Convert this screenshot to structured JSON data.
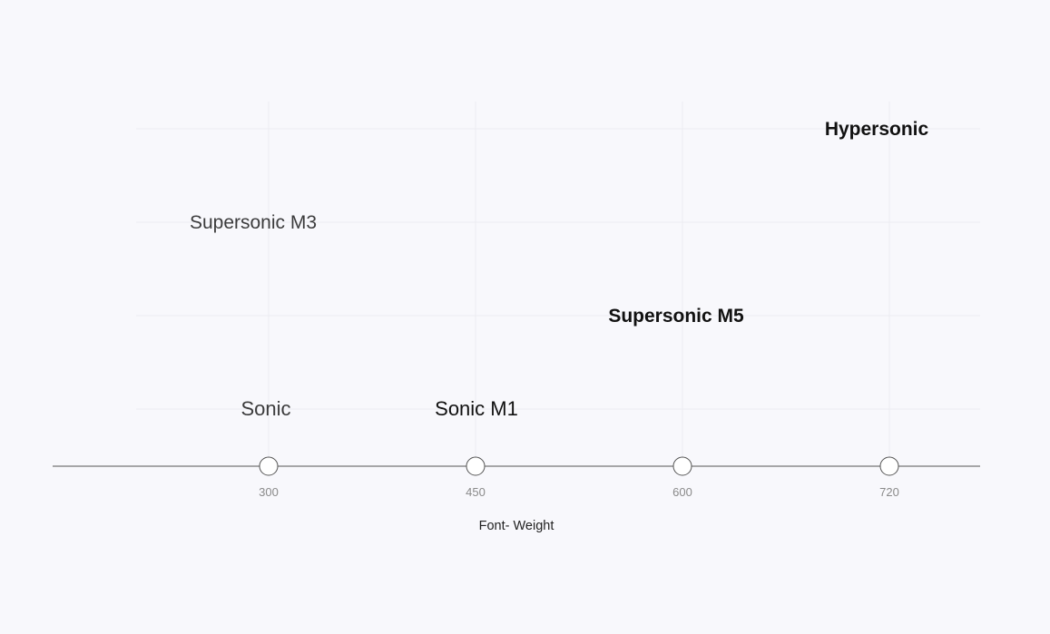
{
  "chart_data": {
    "type": "scatter",
    "title": "",
    "xlabel": "Font- Weight",
    "ylabel": "",
    "x_ticks": [
      300,
      450,
      600,
      720
    ],
    "grid": true,
    "points": [
      {
        "label": "Sonic",
        "x": 300,
        "weight": 300
      },
      {
        "label": "Supersonic M3",
        "x": 300,
        "weight": 300
      },
      {
        "label": "Sonic M1",
        "x": 450,
        "weight": 450
      },
      {
        "label": "Supersonic M5",
        "x": 600,
        "weight": 600
      },
      {
        "label": "Hypersonic",
        "x": 720,
        "weight": 720
      }
    ]
  },
  "colors": {
    "background": "#f8f8fc",
    "grid": "#ececf2",
    "axis": "#555555",
    "marker_fill": "#ffffff",
    "marker_stroke": "#555555",
    "text": "#111111",
    "tick_text": "#8a8a8a"
  }
}
